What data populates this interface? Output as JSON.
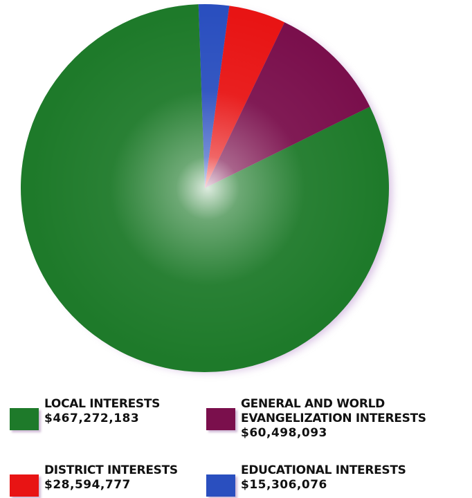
{
  "chart_data": {
    "type": "pie",
    "slices": [
      {
        "label": "LOCAL INTERESTS",
        "value_label": "$467,272,183",
        "value": 467272183,
        "color": "#1e7a2a"
      },
      {
        "label": "GENERAL AND WORLD\nEVANGELIZATION INTERESTS",
        "value_label": "$60,498,093",
        "value": 60498093,
        "color": "#7a0f4c"
      },
      {
        "label": "DISTRICT INTERESTS",
        "value_label": "$28,594,777",
        "value": 28594777,
        "color": "#e81414"
      },
      {
        "label": "EDUCATIONAL INTERESTS",
        "value_label": "$15,306,076",
        "value": 15306076,
        "color": "#2a4fbf"
      }
    ],
    "draw_order": [
      3,
      2,
      1,
      0
    ],
    "start_angle_deg": -2,
    "direction": "clockwise",
    "legend_placement": "bottom"
  }
}
